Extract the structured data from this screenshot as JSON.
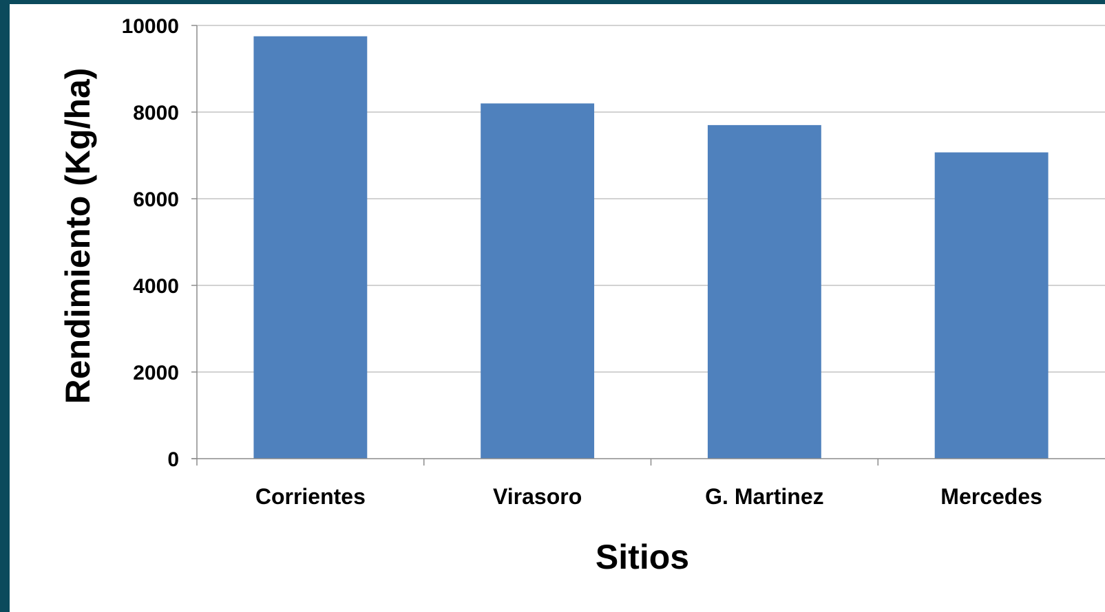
{
  "chart_data": {
    "type": "bar",
    "categories": [
      "Corrientes",
      "Virasoro",
      "G. Martinez",
      "Mercedes"
    ],
    "values": [
      9750,
      8200,
      7700,
      7070
    ],
    "title": "",
    "xlabel": "Sitios",
    "ylabel": "Rendimiento (Kg/ha)",
    "ylim": [
      0,
      10000
    ],
    "yticks": [
      "0",
      "2000",
      "4000",
      "6000",
      "8000",
      "10000"
    ],
    "grid": true,
    "legend": "none",
    "colors": {
      "bar": "#4f81bd",
      "grid": "#a6a6a6",
      "axis": "#8c8c8c",
      "frame": "#0b4a5c"
    }
  }
}
